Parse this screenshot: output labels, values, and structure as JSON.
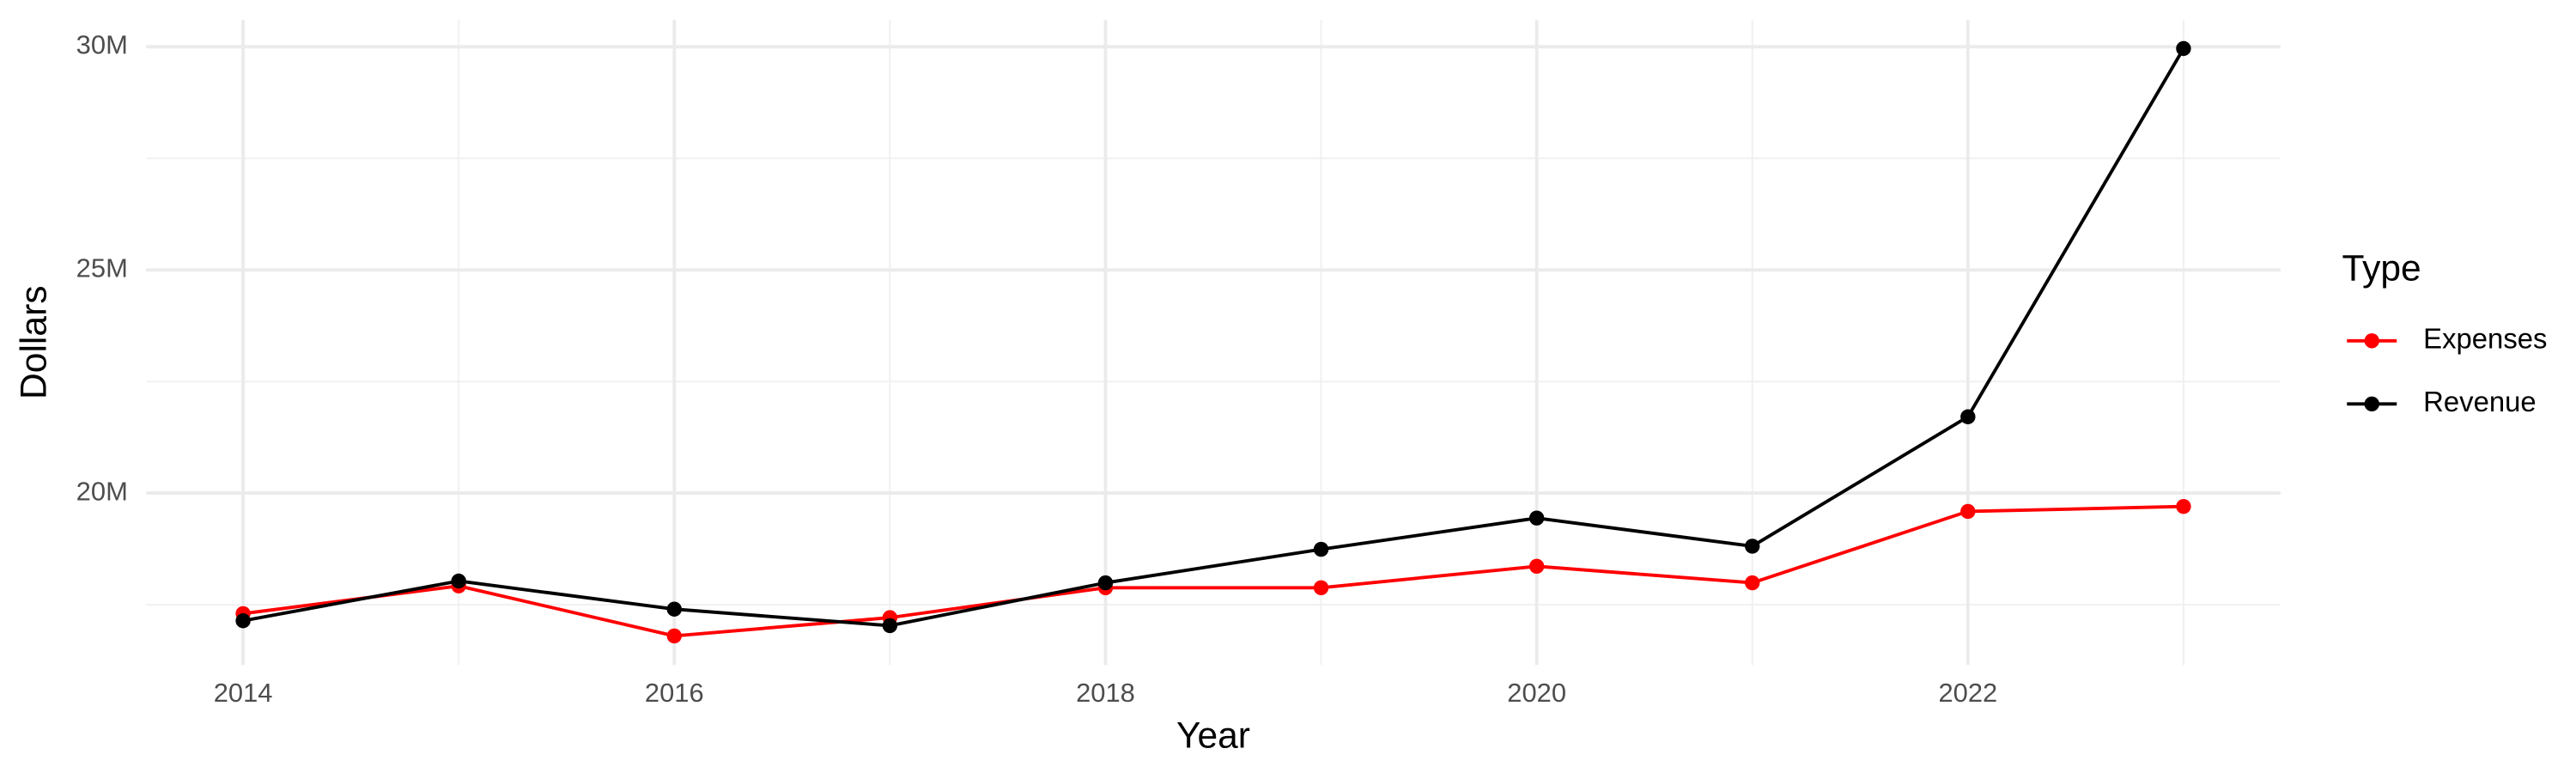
{
  "chart_data": {
    "type": "line",
    "x_label": "Year",
    "y_label": "Dollars",
    "legend_title": "Type",
    "legend_position": "right",
    "grid": true,
    "x": [
      2014,
      2015,
      2016,
      2017,
      2018,
      2019,
      2020,
      2021,
      2022,
      2023
    ],
    "series": [
      {
        "name": "Expenses",
        "color": "#ff0000",
        "values": [
          17300000,
          17920000,
          16800000,
          17210000,
          17880000,
          17880000,
          18360000,
          17990000,
          19590000,
          19700000
        ]
      },
      {
        "name": "Revenue",
        "color": "#000000",
        "values": [
          17140000,
          18030000,
          17400000,
          17030000,
          17990000,
          18740000,
          19440000,
          18810000,
          21710000,
          29960000
        ]
      }
    ],
    "xlim": [
      2013.55,
      2023.45
    ],
    "xticks": [
      2014,
      2016,
      2018,
      2020,
      2022
    ],
    "ylim": [
      16150000,
      30600000
    ],
    "yticks": [
      {
        "value": 20000000,
        "label": "20M"
      },
      {
        "value": 25000000,
        "label": "25M"
      },
      {
        "value": 30000000,
        "label": "30M"
      }
    ]
  }
}
